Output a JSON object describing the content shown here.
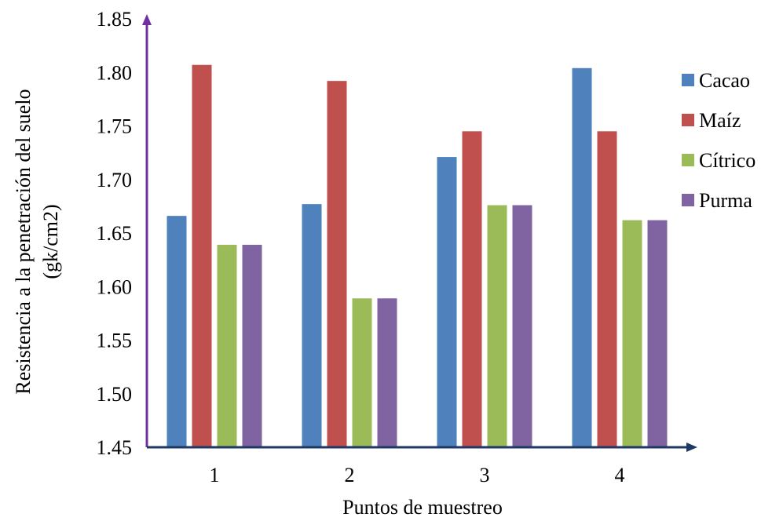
{
  "chart_data": {
    "type": "bar",
    "title": "",
    "xlabel": "Puntos de muestreo",
    "ylabel_lines": [
      "Resistencia a la penetración del suelo",
      "(gk/cm2)"
    ],
    "categories": [
      "1",
      "2",
      "3",
      "4"
    ],
    "ylim": [
      1.45,
      1.85
    ],
    "yticks": [
      "1.45",
      "1.50",
      "1.55",
      "1.60",
      "1.65",
      "1.70",
      "1.75",
      "1.80",
      "1.85"
    ],
    "grid": false,
    "legend_position": "right",
    "series": [
      {
        "name": "Cacao",
        "color": "#4F81BD",
        "values": [
          1.666,
          1.677,
          1.721,
          1.804
        ]
      },
      {
        "name": "Maíz",
        "color": "#C0504D",
        "values": [
          1.807,
          1.792,
          1.745,
          1.745
        ]
      },
      {
        "name": "Cítrico",
        "color": "#9BBB59",
        "values": [
          1.639,
          1.589,
          1.676,
          1.662
        ]
      },
      {
        "name": "Purma",
        "color": "#8064A2",
        "values": [
          1.639,
          1.589,
          1.676,
          1.662
        ]
      }
    ],
    "axis_colors": {
      "y_axis": "#7030A0",
      "x_axis": "#1F3864"
    }
  }
}
